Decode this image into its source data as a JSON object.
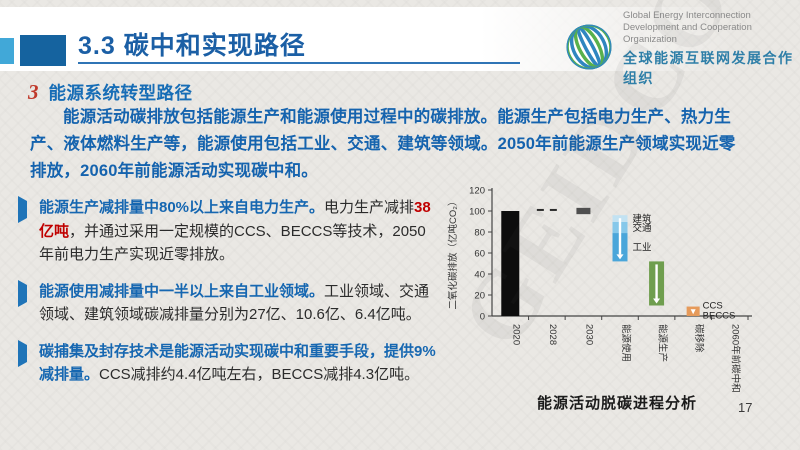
{
  "slide": {
    "header": {
      "title": "3.3 碳中和实现路径",
      "logo": {
        "org_en_line1": "Global Energy Interconnection",
        "org_en_line2": "Development and Cooperation Organization",
        "org_zh": "全球能源互联网发展合作组织"
      }
    },
    "section": {
      "number": "3",
      "heading": "能源系统转型路径",
      "paragraph": "能源活动碳排放包括能源生产和能源使用过程中的碳排放。能源生产包括电力生产、热力生产、液体燃料生产等，能源使用包括工业、交通、建筑等领域。2050年前能源生产领域实现近零排放，2060年前能源活动实现碳中和。"
    },
    "bullets": [
      {
        "lead": "能源生产减排量中80%以上来自电力生产。",
        "text1": "电力生产减排",
        "strong": "38亿吨",
        "text2": "，并通过采用一定规模的CCS、BECCS等技术，2050年前电力生产实现近零排放。"
      },
      {
        "lead": "能源使用减排量中一半以上来自工业领域。",
        "text1": "工业领域、交通领域、建筑领域碳减排量分别为27亿、10.6亿、6.4亿吨。",
        "strong": "",
        "text2": ""
      },
      {
        "lead": "碳捕集及封存技术是能源活动实现碳中和重要手段，提供9%减排量。",
        "text1": "CCS减排约4.4亿吨左右，BECCS减排4.3亿吨。",
        "strong": "",
        "text2": ""
      }
    ],
    "watermark": "GEIDCO",
    "page_number": "17"
  },
  "chart_data": {
    "type": "bar",
    "subtype": "waterfall",
    "title": "能源活动脱碳进程分析",
    "ylabel": "二氧化碳排放（亿吨CO₂）",
    "xlabel": "",
    "ylim": [
      0,
      120
    ],
    "yticks": [
      0,
      20,
      40,
      60,
      80,
      100,
      120
    ],
    "grid": false,
    "legend": "none",
    "categories": [
      "2020",
      "2028",
      "2030",
      "能源使用",
      "能源生产",
      "碳移除",
      "2060年前碳中和"
    ],
    "bars": [
      {
        "category": "2020",
        "style": "solid",
        "from": 0,
        "to": 100,
        "color": "#0d0d0d",
        "width": 18
      },
      {
        "category": "2028",
        "style": "dash",
        "value": 101,
        "color": "#2b2b2b"
      },
      {
        "category": "2030",
        "style": "solid",
        "from": 97,
        "to": 103,
        "color": "#4f4f4f",
        "width": 14
      },
      {
        "category": "能源使用",
        "style": "stack",
        "arrow": true,
        "width": 15,
        "segments": [
          {
            "label": "工业",
            "from": 52,
            "to": 79,
            "color": "#4aa6da"
          },
          {
            "label": "交通",
            "from": 79,
            "to": 89.6,
            "color": "#86c8ea"
          },
          {
            "label": "建筑",
            "from": 89.6,
            "to": 96,
            "color": "#c2e2f2"
          }
        ]
      },
      {
        "category": "能源生产",
        "style": "solid",
        "from": 10,
        "to": 52,
        "color": "#6f9e4e",
        "arrow": true,
        "width": 15
      },
      {
        "category": "碳移除",
        "style": "solid",
        "from": 0,
        "to": 9,
        "color": "#e69a5a",
        "arrow": true,
        "width": 13,
        "side_labels": [
          "CCS",
          "BECCS"
        ]
      },
      {
        "category": "2060年前碳中和",
        "style": "none"
      }
    ]
  }
}
